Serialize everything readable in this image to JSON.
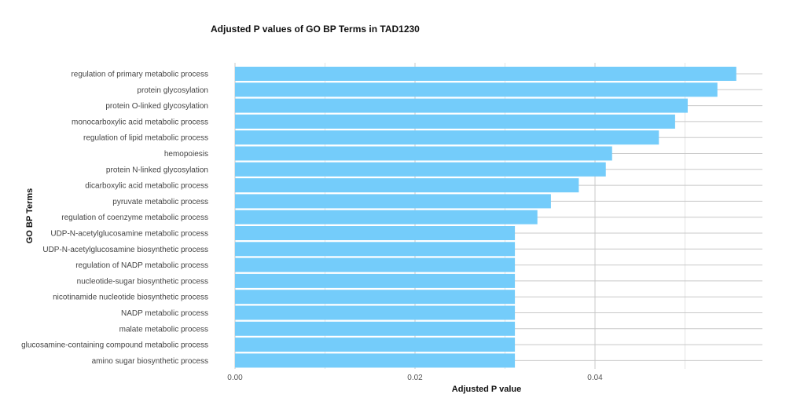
{
  "chart_data": {
    "type": "bar",
    "orientation": "horizontal",
    "title": "Adjusted P values of GO BP Terms in TAD1230",
    "xlabel": "Adjusted P value",
    "ylabel": "GO BP Terms",
    "xlim": [
      0,
      0.0585
    ],
    "x_ticks": [
      "0.00",
      "0.02",
      "0.04"
    ],
    "x_tick_values": [
      0,
      0.02,
      0.04
    ],
    "bar_color": "#74ccfa",
    "grid": true,
    "legend": "none",
    "categories": [
      "regulation of primary metabolic process",
      "protein glycosylation",
      "protein O-linked glycosylation",
      "monocarboxylic acid metabolic process",
      "regulation of lipid metabolic process",
      "hemopoiesis",
      "protein N-linked glycosylation",
      "dicarboxylic acid metabolic process",
      "pyruvate metabolic process",
      "regulation of coenzyme metabolic process",
      "UDP-N-acetylglucosamine metabolic process",
      "UDP-N-acetylglucosamine biosynthetic process",
      "regulation of NADP metabolic process",
      "nucleotide-sugar biosynthetic process",
      "nicotinamide nucleotide biosynthetic process",
      "NADP metabolic process",
      "malate metabolic process",
      "glucosamine-containing compound metabolic process",
      "amino sugar biosynthetic process"
    ],
    "values": [
      0.0557,
      0.0536,
      0.0503,
      0.0489,
      0.0471,
      0.0419,
      0.0412,
      0.0382,
      0.0351,
      0.0336,
      0.0311,
      0.0311,
      0.0311,
      0.0311,
      0.0311,
      0.0311,
      0.0311,
      0.0311,
      0.0311
    ]
  }
}
